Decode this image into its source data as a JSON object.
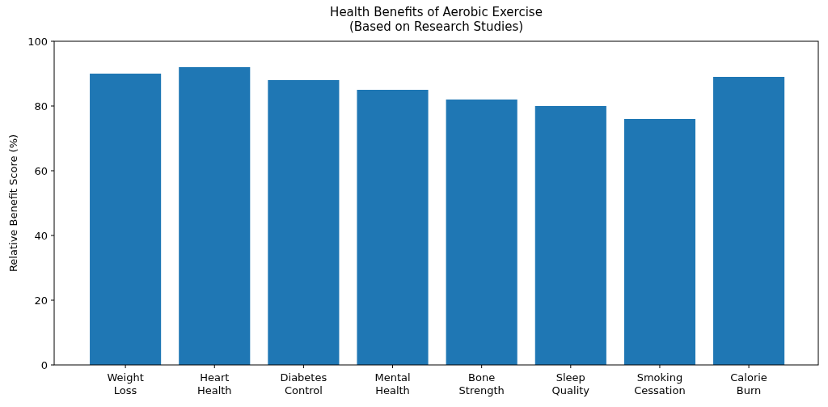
{
  "chart_data": {
    "type": "bar",
    "title": "Health Benefits of Aerobic Exercise\n(Based on Research Studies)",
    "ylabel": "Relative Benefit Score (%)",
    "categories": [
      "Weight\nLoss",
      "Heart\nHealth",
      "Diabetes\nControl",
      "Mental\nHealth",
      "Bone\nStrength",
      "Sleep\nQuality",
      "Smoking\nCessation",
      "Calorie\nBurn"
    ],
    "values": [
      90,
      92,
      88,
      85,
      82,
      80,
      76,
      89
    ],
    "color": "#1f77b4",
    "ylim": [
      0,
      100
    ],
    "yticks": [
      0,
      20,
      40,
      60,
      80,
      100
    ],
    "grid": false
  }
}
